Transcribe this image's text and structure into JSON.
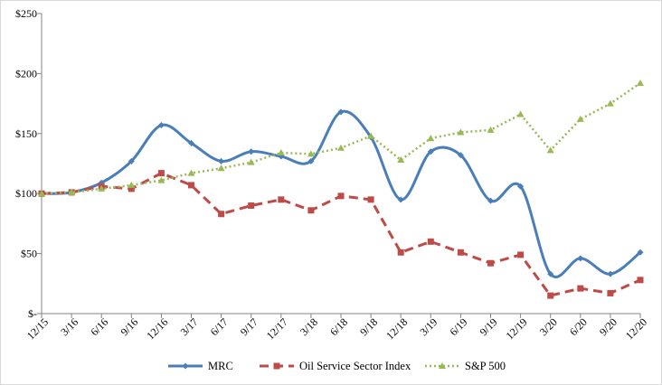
{
  "chart_data": {
    "type": "line",
    "title": "",
    "xlabel": "",
    "ylabel": "",
    "x": [
      "12/15",
      "3/16",
      "6/16",
      "9/16",
      "12/16",
      "3/17",
      "6/17",
      "9/17",
      "12/17",
      "3/18",
      "6/18",
      "9/18",
      "12/18",
      "3/19",
      "6/19",
      "9/19",
      "12/19",
      "3/20",
      "6/20",
      "9/20",
      "12/20"
    ],
    "ylim": [
      0,
      250
    ],
    "yticks": [
      0,
      50,
      100,
      150,
      200,
      250
    ],
    "ytick_labels": [
      "$-",
      "$50",
      "$100",
      "$150",
      "$200",
      "$250"
    ],
    "grid": false,
    "legend_position": "bottom",
    "series": [
      {
        "name": "MRC",
        "color": "#4a7ebb",
        "style": "solid-smooth",
        "marker": "diamond",
        "values": [
          100,
          101,
          109,
          127,
          157,
          142,
          127,
          135,
          131,
          127,
          168,
          147,
          95,
          135,
          132,
          94,
          106,
          33,
          46,
          33,
          51
        ]
      },
      {
        "name": "Oil Service Sector Index",
        "color": "#be4b48",
        "style": "dashed",
        "marker": "square",
        "values": [
          100,
          101,
          106,
          104,
          117,
          107,
          83,
          90,
          95,
          86,
          98,
          95,
          51,
          60,
          51,
          42,
          49,
          15,
          21,
          17,
          28
        ]
      },
      {
        "name": "S&P 500",
        "color": "#98b954",
        "style": "dotted",
        "marker": "triangle",
        "values": [
          100,
          101,
          104,
          107,
          111,
          117,
          121,
          126,
          134,
          133,
          138,
          148,
          128,
          146,
          151,
          153,
          166,
          136,
          162,
          175,
          192
        ]
      }
    ]
  }
}
